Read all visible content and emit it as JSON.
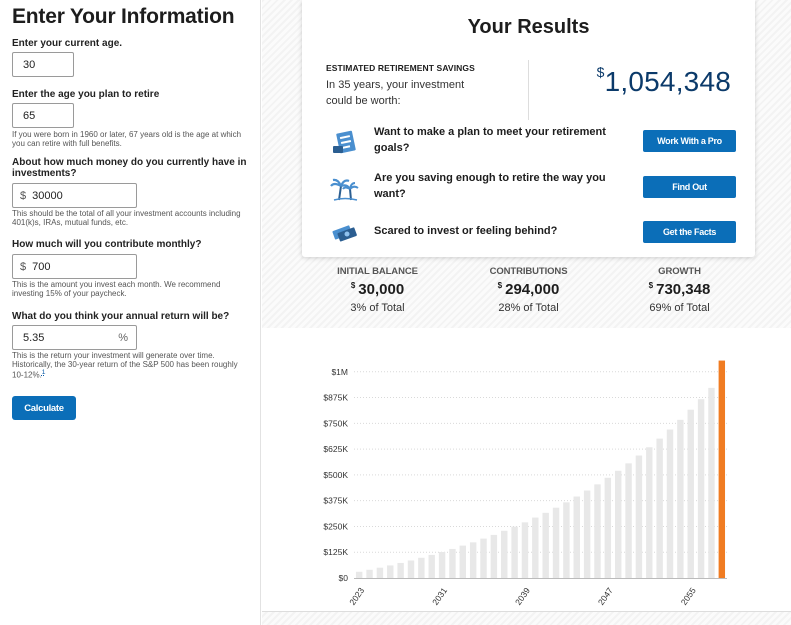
{
  "form": {
    "heading": "Enter Your Information",
    "age_label": "Enter your current age.",
    "age_value": "30",
    "retire_label": "Enter the age you plan to retire",
    "retire_value": "65",
    "retire_help": "If you were born in 1960 or later, 67 years old is the age at which you can retire with full benefits.",
    "invest_label": "About how much money do you currently have in investments?",
    "invest_prefix": "$",
    "invest_value": "30000",
    "invest_help": "This should be the total of all your investment accounts including 401(k)s, IRAs, mutual funds, etc.",
    "monthly_label": "How much will you contribute monthly?",
    "monthly_prefix": "$",
    "monthly_value": "700",
    "monthly_help": "This is the amount you invest each month. We recommend investing 15% of your paycheck.",
    "return_label": "What do you think your annual return will be?",
    "return_value": "5.35",
    "return_suffix": "%",
    "return_help_a": "This is the return your investment will generate over time. Historically, the 30-year return of the S&P 500 has been roughly 10-12%.",
    "return_help_link": "1",
    "calculate_label": "Calculate"
  },
  "results": {
    "heading": "Your Results",
    "estimate_title": "ESTIMATED RETIREMENT SAVINGS",
    "estimate_text": "In 35 years, your investment could be worth:",
    "currency_symbol": "$",
    "amount": "1,054,348",
    "actions": [
      {
        "text": "Want to make a plan to meet your retirement goals?",
        "button": "Work With a Pro",
        "icon": "checklist-icon"
      },
      {
        "text": "Are you saving enough to retire the way you want?",
        "button": "Find Out",
        "icon": "palm-trees-icon"
      },
      {
        "text": "Scared to invest or feeling behind?",
        "button": "Get the Facts",
        "icon": "money-stack-icon"
      }
    ]
  },
  "stats": [
    {
      "label": "INITIAL BALANCE",
      "symbol": "$",
      "value": "30,000",
      "pct": "3% of Total"
    },
    {
      "label": "CONTRIBUTIONS",
      "symbol": "$",
      "value": "294,000",
      "pct": "28% of Total"
    },
    {
      "label": "GROWTH",
      "symbol": "$",
      "value": "730,348",
      "pct": "69% of Total"
    }
  ],
  "chart_data": {
    "type": "bar",
    "title": "",
    "xlabel": "",
    "ylabel": "",
    "ylim": [
      0,
      1125000
    ],
    "yticks": [
      0,
      125000,
      250000,
      375000,
      500000,
      625000,
      750000,
      875000,
      1000000
    ],
    "ytick_labels": [
      "$0",
      "$125K",
      "$250K",
      "$375K",
      "$500K",
      "$625K",
      "$750K",
      "$875K",
      "$1M"
    ],
    "xtick_labels": [
      "2023",
      "2031",
      "2039",
      "2047",
      "2055"
    ],
    "xtick_years": [
      2023,
      2031,
      2039,
      2047,
      2055
    ],
    "bar_color": "#e8e8e8",
    "highlight_color": "#f07c22",
    "grid": true,
    "x": [
      2023,
      2024,
      2025,
      2026,
      2027,
      2028,
      2029,
      2030,
      2031,
      2032,
      2033,
      2034,
      2035,
      2036,
      2037,
      2038,
      2039,
      2040,
      2041,
      2042,
      2043,
      2044,
      2045,
      2046,
      2047,
      2048,
      2049,
      2050,
      2051,
      2052,
      2053,
      2054,
      2055,
      2056,
      2057,
      2058
    ],
    "values": [
      30000,
      40000,
      50000,
      61000,
      73000,
      85000,
      98000,
      112000,
      126000,
      141000,
      157000,
      173000,
      191000,
      209000,
      229000,
      249000,
      270000,
      293000,
      316000,
      341000,
      367000,
      395000,
      424000,
      454000,
      486000,
      520000,
      556000,
      594000,
      634000,
      676000,
      720000,
      767000,
      816000,
      867000,
      922000,
      1054348
    ]
  }
}
